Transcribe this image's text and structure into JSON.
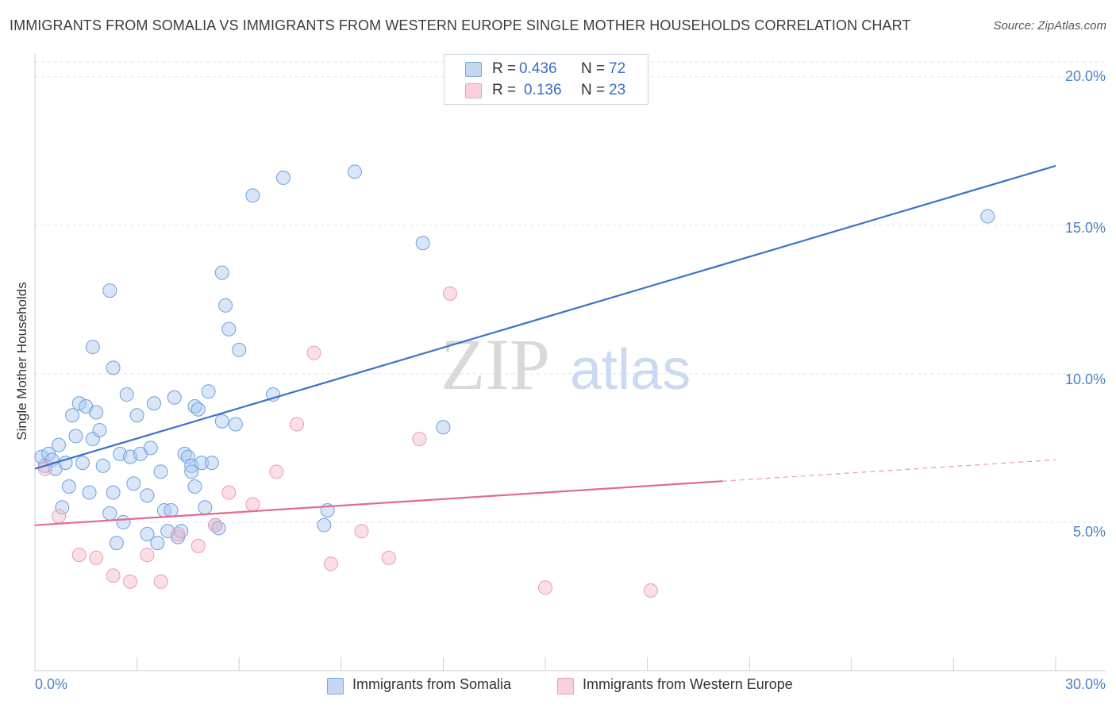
{
  "title": "IMMIGRANTS FROM SOMALIA VS IMMIGRANTS FROM WESTERN EUROPE SINGLE MOTHER HOUSEHOLDS CORRELATION CHART",
  "source": "Source: ZipAtlas.com",
  "watermark": {
    "zip": "ZIP",
    "atlas": "atlas"
  },
  "legend": {
    "r_label": "R =",
    "n_label": "N =",
    "series": [
      {
        "r": "0.436",
        "n": "72",
        "color": "#a9c7ef"
      },
      {
        "r": "0.136",
        "n": "23",
        "color": "#f4b8c9"
      }
    ]
  },
  "bottom_legend": [
    {
      "label": "Immigrants from Somalia",
      "color": "#a9c7ef"
    },
    {
      "label": "Immigrants from Western Europe",
      "color": "#f4b8c9"
    }
  ],
  "chart_data": {
    "type": "scatter",
    "title": "IMMIGRANTS FROM SOMALIA VS IMMIGRANTS FROM WESTERN EUROPE SINGLE MOTHER HOUSEHOLDS CORRELATION CHART",
    "xlabel": "",
    "ylabel": "Single Mother Households",
    "xlim": [
      0,
      30
    ],
    "ylim": [
      0,
      20.5
    ],
    "x_tick_labels": [
      "0.0%",
      "30.0%"
    ],
    "y_tick_labels": [
      "5.0%",
      "10.0%",
      "15.0%",
      "20.0%"
    ],
    "y_tick_values": [
      5,
      10,
      15,
      20
    ],
    "grid": "horizontal dashed",
    "legend_position": "top-center",
    "series": [
      {
        "name": "Immigrants from Somalia",
        "color": "#6f9fe0",
        "fill": "#a9c7ef",
        "trend": {
          "x0": 0,
          "y0": 6.8,
          "x1": 30,
          "y1": 17.0,
          "style": "solid",
          "color": "#3b72c9"
        },
        "points": [
          [
            0.2,
            7.2
          ],
          [
            0.3,
            6.9
          ],
          [
            0.4,
            7.3
          ],
          [
            0.5,
            7.1
          ],
          [
            0.6,
            6.8
          ],
          [
            0.7,
            7.6
          ],
          [
            0.8,
            5.5
          ],
          [
            0.9,
            7.0
          ],
          [
            1.0,
            6.2
          ],
          [
            1.1,
            8.6
          ],
          [
            1.2,
            7.9
          ],
          [
            1.3,
            9.0
          ],
          [
            1.4,
            7.0
          ],
          [
            1.5,
            8.9
          ],
          [
            1.6,
            6.0
          ],
          [
            1.7,
            7.8
          ],
          [
            1.8,
            8.7
          ],
          [
            1.9,
            8.1
          ],
          [
            2.0,
            6.9
          ],
          [
            2.2,
            5.3
          ],
          [
            2.3,
            6.0
          ],
          [
            2.4,
            4.3
          ],
          [
            2.5,
            7.3
          ],
          [
            2.6,
            5.0
          ],
          [
            2.7,
            9.3
          ],
          [
            2.8,
            7.2
          ],
          [
            2.9,
            6.3
          ],
          [
            3.0,
            8.6
          ],
          [
            3.1,
            7.3
          ],
          [
            3.3,
            5.9
          ],
          [
            3.4,
            7.5
          ],
          [
            3.5,
            9.0
          ],
          [
            3.6,
            4.3
          ],
          [
            3.7,
            6.7
          ],
          [
            3.8,
            5.4
          ],
          [
            3.9,
            4.7
          ],
          [
            4.0,
            5.4
          ],
          [
            4.1,
            9.2
          ],
          [
            4.2,
            4.5
          ],
          [
            4.3,
            4.7
          ],
          [
            4.4,
            7.3
          ],
          [
            4.5,
            7.2
          ],
          [
            4.6,
            6.9
          ],
          [
            4.7,
            8.9
          ],
          [
            4.8,
            8.8
          ],
          [
            4.9,
            7.0
          ],
          [
            5.0,
            5.5
          ],
          [
            5.1,
            9.4
          ],
          [
            5.2,
            7.0
          ],
          [
            5.3,
            4.9
          ],
          [
            5.5,
            13.4
          ],
          [
            5.6,
            12.3
          ],
          [
            6.0,
            10.8
          ],
          [
            4.7,
            6.2
          ],
          [
            5.4,
            4.8
          ],
          [
            2.2,
            12.8
          ],
          [
            1.7,
            10.9
          ],
          [
            2.3,
            10.2
          ],
          [
            3.3,
            4.6
          ],
          [
            4.6,
            6.7
          ],
          [
            5.9,
            8.3
          ],
          [
            5.5,
            8.4
          ],
          [
            7.0,
            9.3
          ],
          [
            8.5,
            4.9
          ],
          [
            8.6,
            5.4
          ],
          [
            12.0,
            8.2
          ],
          [
            5.7,
            11.5
          ],
          [
            6.4,
            16.0
          ],
          [
            7.3,
            16.6
          ],
          [
            9.4,
            16.8
          ],
          [
            11.4,
            14.4
          ],
          [
            28.0,
            15.3
          ]
        ]
      },
      {
        "name": "Immigrants from Western Europe",
        "color": "#ee9ab3",
        "fill": "#f4b8c9",
        "trend": {
          "x0": 0,
          "y0": 4.9,
          "x1": 30,
          "y1": 7.1,
          "solid_until": 20.2,
          "color": "#e06c93"
        },
        "points": [
          [
            0.3,
            6.8
          ],
          [
            0.7,
            5.2
          ],
          [
            1.3,
            3.9
          ],
          [
            1.8,
            3.8
          ],
          [
            2.3,
            3.2
          ],
          [
            2.8,
            3.0
          ],
          [
            3.3,
            3.9
          ],
          [
            3.7,
            3.0
          ],
          [
            4.2,
            4.6
          ],
          [
            4.8,
            4.2
          ],
          [
            5.3,
            4.9
          ],
          [
            5.7,
            6.0
          ],
          [
            6.4,
            5.6
          ],
          [
            7.1,
            6.7
          ],
          [
            7.7,
            8.3
          ],
          [
            8.2,
            10.7
          ],
          [
            8.7,
            3.6
          ],
          [
            9.6,
            4.7
          ],
          [
            10.4,
            3.8
          ],
          [
            11.3,
            7.8
          ],
          [
            12.2,
            12.7
          ],
          [
            15.0,
            2.8
          ],
          [
            18.1,
            2.7
          ]
        ]
      }
    ]
  }
}
